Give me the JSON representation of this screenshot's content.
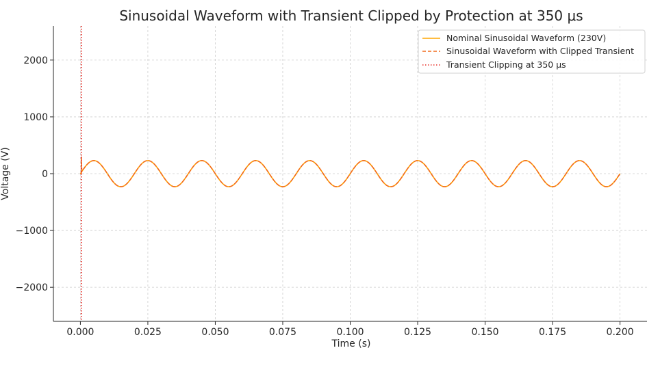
{
  "chart_data": {
    "type": "line",
    "title": "Sinusoidal Waveform with Transient Clipped by Protection at 350 μs",
    "xlabel": "Time (s)",
    "ylabel": "Voltage (V)",
    "xlim": [
      -0.01,
      0.21
    ],
    "ylim": [
      -2600,
      2600
    ],
    "xticks": [
      0.0,
      0.025,
      0.05,
      0.075,
      0.1,
      0.125,
      0.15,
      0.175,
      0.2
    ],
    "xtick_labels": [
      "0.000",
      "0.025",
      "0.050",
      "0.075",
      "0.100",
      "0.125",
      "0.150",
      "0.175",
      "0.200"
    ],
    "yticks": [
      -2000,
      -1000,
      0,
      1000,
      2000
    ],
    "ytick_labels": [
      "−2000",
      "−1000",
      "0",
      "1000",
      "2000"
    ],
    "grid": true,
    "legend_position": "top-right",
    "signal": {
      "amplitude": 230,
      "frequency_hz": 50,
      "t_start": 0.0,
      "t_end": 0.2
    },
    "transient": {
      "time_s": 0.00035,
      "peak_v": 300
    },
    "series": [
      {
        "name": "Nominal Sinusoidal Waveform (230V)",
        "style": "solid",
        "color": "#ffa500"
      },
      {
        "name": "Sinusoidal Waveform with Clipped Transient",
        "style": "dashed",
        "color": "#f26b1d"
      },
      {
        "name": "Transient Clipping at 350 μs",
        "style": "dotted",
        "color": "#e8312a",
        "x": 0.00035
      }
    ]
  }
}
